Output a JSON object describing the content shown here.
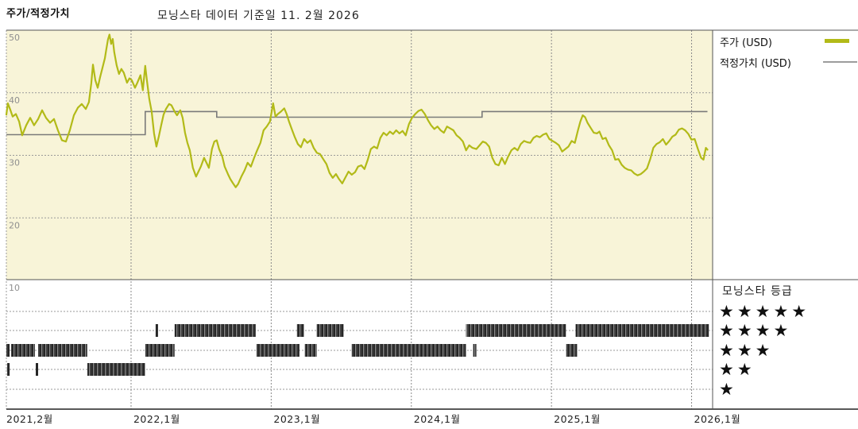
{
  "header": {
    "section_label": "주가/적정가치",
    "title": "모닝스타 데이터 기준일 11. 2월 2026"
  },
  "legend": {
    "price_label": "주가 (USD)",
    "fair_value_label": "적정가치 (USD)"
  },
  "rating_panel": {
    "title": "모닝스타 등급",
    "star_glyph": "★",
    "rows": [
      5,
      4,
      3,
      2,
      1
    ]
  },
  "colors": {
    "chart_bg": "#f8f4d8",
    "price_line": "#b2ba18",
    "fair_value_line": "#7a7a7a",
    "fair_value_legend_swatch": "#9c9c9c",
    "grid": "#9a9a9a",
    "border": "#555555",
    "axis_line": "#222222",
    "y_tick_text": "#8f8f8f",
    "x_tick_text": "#1f1f1f",
    "rating_band": "#262626",
    "stars": "#101010"
  },
  "chart_data": {
    "type": "line",
    "title": "모닝스타 데이터 기준일 11. 2월 2026",
    "x_range": [
      2021.11,
      2026.15
    ],
    "y_range": [
      10,
      50
    ],
    "grid": true,
    "legend_position": "top-right",
    "x_ticks": [
      {
        "x": 2021.11,
        "label": "2021,2월",
        "gridline": false
      },
      {
        "x": 2022.0,
        "label": "2022,1월",
        "gridline": true
      },
      {
        "x": 2023.0,
        "label": "2023,1월",
        "gridline": true
      },
      {
        "x": 2024.0,
        "label": "2024,1월",
        "gridline": true
      },
      {
        "x": 2025.0,
        "label": "2025,1월",
        "gridline": true
      },
      {
        "x": 2026.0,
        "label": "2026,1월",
        "gridline": true
      }
    ],
    "y_ticks": [
      50,
      40,
      30,
      20,
      10
    ],
    "series": [
      {
        "name": "주가 (USD)",
        "unit": "USD",
        "points": [
          [
            2021.11,
            36.5
          ],
          [
            2021.121,
            38.3
          ],
          [
            2021.138,
            37.3
          ],
          [
            2021.155,
            36.2
          ],
          [
            2021.178,
            36.6
          ],
          [
            2021.201,
            35.4
          ],
          [
            2021.223,
            33.2
          ],
          [
            2021.252,
            34.8
          ],
          [
            2021.28,
            36.0
          ],
          [
            2021.308,
            34.8
          ],
          [
            2021.337,
            35.8
          ],
          [
            2021.365,
            37.2
          ],
          [
            2021.393,
            36.0
          ],
          [
            2021.422,
            35.2
          ],
          [
            2021.45,
            35.8
          ],
          [
            2021.478,
            34.0
          ],
          [
            2021.507,
            32.4
          ],
          [
            2021.535,
            32.2
          ],
          [
            2021.563,
            34.0
          ],
          [
            2021.592,
            36.4
          ],
          [
            2021.62,
            37.6
          ],
          [
            2021.648,
            38.2
          ],
          [
            2021.677,
            37.4
          ],
          [
            2021.699,
            38.5
          ],
          [
            2021.716,
            41.5
          ],
          [
            2021.728,
            44.5
          ],
          [
            2021.745,
            42.0
          ],
          [
            2021.762,
            40.8
          ],
          [
            2021.779,
            42.5
          ],
          [
            2021.796,
            44.0
          ],
          [
            2021.813,
            45.5
          ],
          [
            2021.824,
            47.0
          ],
          [
            2021.835,
            48.5
          ],
          [
            2021.846,
            49.3
          ],
          [
            2021.858,
            47.8
          ],
          [
            2021.869,
            48.6
          ],
          [
            2021.88,
            46.5
          ],
          [
            2021.897,
            44.4
          ],
          [
            2021.914,
            43.0
          ],
          [
            2021.931,
            43.8
          ],
          [
            2021.948,
            43.2
          ],
          [
            2021.971,
            41.6
          ],
          [
            2021.988,
            42.3
          ],
          [
            2022.005,
            42.0
          ],
          [
            2022.028,
            40.8
          ],
          [
            2022.045,
            41.6
          ],
          [
            2022.067,
            42.8
          ],
          [
            2022.084,
            40.4
          ],
          [
            2022.101,
            44.3
          ],
          [
            2022.113,
            42.0
          ],
          [
            2022.13,
            39.0
          ],
          [
            2022.147,
            37.0
          ],
          [
            2022.164,
            33.5
          ],
          [
            2022.181,
            31.4
          ],
          [
            2022.198,
            33.0
          ],
          [
            2022.215,
            34.8
          ],
          [
            2022.232,
            36.5
          ],
          [
            2022.249,
            37.4
          ],
          [
            2022.271,
            38.2
          ],
          [
            2022.288,
            38.0
          ],
          [
            2022.311,
            37.0
          ],
          [
            2022.328,
            36.4
          ],
          [
            2022.351,
            37.2
          ],
          [
            2022.368,
            36.0
          ],
          [
            2022.385,
            33.6
          ],
          [
            2022.402,
            32.0
          ],
          [
            2022.419,
            30.8
          ],
          [
            2022.441,
            28.0
          ],
          [
            2022.464,
            26.6
          ],
          [
            2022.481,
            27.4
          ],
          [
            2022.498,
            28.2
          ],
          [
            2022.521,
            29.6
          ],
          [
            2022.538,
            28.8
          ],
          [
            2022.555,
            28.0
          ],
          [
            2022.577,
            31.0
          ],
          [
            2022.594,
            32.2
          ],
          [
            2022.611,
            32.4
          ],
          [
            2022.628,
            31.0
          ],
          [
            2022.651,
            29.8
          ],
          [
            2022.668,
            28.2
          ],
          [
            2022.691,
            27.0
          ],
          [
            2022.708,
            26.2
          ],
          [
            2022.725,
            25.6
          ],
          [
            2022.747,
            24.9
          ],
          [
            2022.764,
            25.4
          ],
          [
            2022.787,
            26.6
          ],
          [
            2022.81,
            27.6
          ],
          [
            2022.832,
            28.8
          ],
          [
            2022.855,
            28.2
          ],
          [
            2022.878,
            29.6
          ],
          [
            2022.9,
            30.8
          ],
          [
            2022.923,
            32.0
          ],
          [
            2022.946,
            34.0
          ],
          [
            2022.968,
            34.6
          ],
          [
            2022.991,
            35.4
          ],
          [
            2023.014,
            38.3
          ],
          [
            2023.031,
            36.2
          ],
          [
            2023.048,
            36.6
          ],
          [
            2023.07,
            37.0
          ],
          [
            2023.093,
            37.5
          ],
          [
            2023.11,
            36.6
          ],
          [
            2023.127,
            35.4
          ],
          [
            2023.15,
            34.0
          ],
          [
            2023.167,
            33.0
          ],
          [
            2023.19,
            31.8
          ],
          [
            2023.212,
            31.3
          ],
          [
            2023.235,
            32.6
          ],
          [
            2023.258,
            32.0
          ],
          [
            2023.28,
            32.4
          ],
          [
            2023.303,
            31.2
          ],
          [
            2023.326,
            30.4
          ],
          [
            2023.348,
            30.2
          ],
          [
            2023.371,
            29.4
          ],
          [
            2023.394,
            28.6
          ],
          [
            2023.416,
            27.2
          ],
          [
            2023.439,
            26.4
          ],
          [
            2023.462,
            27.0
          ],
          [
            2023.484,
            26.2
          ],
          [
            2023.507,
            25.5
          ],
          [
            2023.53,
            26.5
          ],
          [
            2023.552,
            27.4
          ],
          [
            2023.575,
            26.9
          ],
          [
            2023.598,
            27.3
          ],
          [
            2023.62,
            28.2
          ],
          [
            2023.643,
            28.4
          ],
          [
            2023.666,
            27.8
          ],
          [
            2023.688,
            29.2
          ],
          [
            2023.711,
            31.0
          ],
          [
            2023.734,
            31.4
          ],
          [
            2023.756,
            31.1
          ],
          [
            2023.779,
            32.8
          ],
          [
            2023.802,
            33.6
          ],
          [
            2023.824,
            33.2
          ],
          [
            2023.847,
            33.8
          ],
          [
            2023.87,
            33.4
          ],
          [
            2023.892,
            34.0
          ],
          [
            2023.915,
            33.5
          ],
          [
            2023.937,
            33.9
          ],
          [
            2023.96,
            33.2
          ],
          [
            2023.983,
            35.0
          ],
          [
            2024.005,
            36.0
          ],
          [
            2024.028,
            36.6
          ],
          [
            2024.051,
            37.1
          ],
          [
            2024.073,
            37.3
          ],
          [
            2024.096,
            36.6
          ],
          [
            2024.119,
            35.6
          ],
          [
            2024.141,
            34.8
          ],
          [
            2024.164,
            34.2
          ],
          [
            2024.187,
            34.6
          ],
          [
            2024.209,
            34.0
          ],
          [
            2024.232,
            33.6
          ],
          [
            2024.255,
            34.6
          ],
          [
            2024.277,
            34.3
          ],
          [
            2024.3,
            34.0
          ],
          [
            2024.323,
            33.2
          ],
          [
            2024.345,
            32.8
          ],
          [
            2024.368,
            32.2
          ],
          [
            2024.391,
            30.8
          ],
          [
            2024.413,
            31.6
          ],
          [
            2024.436,
            31.2
          ],
          [
            2024.464,
            31.0
          ],
          [
            2024.487,
            31.6
          ],
          [
            2024.51,
            32.2
          ],
          [
            2024.532,
            32.0
          ],
          [
            2024.555,
            31.4
          ],
          [
            2024.578,
            29.6
          ],
          [
            2024.6,
            28.6
          ],
          [
            2024.623,
            28.4
          ],
          [
            2024.646,
            29.6
          ],
          [
            2024.668,
            28.6
          ],
          [
            2024.691,
            29.8
          ],
          [
            2024.714,
            30.8
          ],
          [
            2024.736,
            31.2
          ],
          [
            2024.759,
            30.8
          ],
          [
            2024.781,
            31.8
          ],
          [
            2024.804,
            32.3
          ],
          [
            2024.827,
            32.1
          ],
          [
            2024.849,
            32.0
          ],
          [
            2024.872,
            32.8
          ],
          [
            2024.895,
            33.1
          ],
          [
            2024.917,
            32.9
          ],
          [
            2024.94,
            33.3
          ],
          [
            2024.963,
            33.5
          ],
          [
            2024.985,
            32.6
          ],
          [
            2025.008,
            32.3
          ],
          [
            2025.031,
            32.0
          ],
          [
            2025.053,
            31.6
          ],
          [
            2025.076,
            30.6
          ],
          [
            2025.099,
            31.0
          ],
          [
            2025.121,
            31.4
          ],
          [
            2025.144,
            32.3
          ],
          [
            2025.167,
            32.0
          ],
          [
            2025.189,
            34.0
          ],
          [
            2025.206,
            35.4
          ],
          [
            2025.223,
            36.4
          ],
          [
            2025.24,
            36.1
          ],
          [
            2025.257,
            35.2
          ],
          [
            2025.28,
            34.4
          ],
          [
            2025.302,
            33.6
          ],
          [
            2025.325,
            33.5
          ],
          [
            2025.342,
            33.8
          ],
          [
            2025.365,
            32.6
          ],
          [
            2025.387,
            32.8
          ],
          [
            2025.41,
            31.6
          ],
          [
            2025.433,
            30.8
          ],
          [
            2025.455,
            29.3
          ],
          [
            2025.478,
            29.4
          ],
          [
            2025.501,
            28.5
          ],
          [
            2025.523,
            28.0
          ],
          [
            2025.546,
            27.7
          ],
          [
            2025.569,
            27.6
          ],
          [
            2025.591,
            27.1
          ],
          [
            2025.614,
            26.8
          ],
          [
            2025.637,
            27.0
          ],
          [
            2025.659,
            27.4
          ],
          [
            2025.682,
            27.9
          ],
          [
            2025.705,
            29.4
          ],
          [
            2025.727,
            31.2
          ],
          [
            2025.75,
            31.8
          ],
          [
            2025.773,
            32.1
          ],
          [
            2025.795,
            32.6
          ],
          [
            2025.818,
            31.7
          ],
          [
            2025.841,
            32.3
          ],
          [
            2025.863,
            33.0
          ],
          [
            2025.886,
            33.3
          ],
          [
            2025.909,
            34.1
          ],
          [
            2025.931,
            34.3
          ],
          [
            2025.954,
            34.0
          ],
          [
            2025.977,
            33.4
          ],
          [
            2025.999,
            32.5
          ],
          [
            2026.022,
            32.6
          ],
          [
            2026.045,
            31.0
          ],
          [
            2026.068,
            29.6
          ],
          [
            2026.085,
            29.3
          ],
          [
            2026.102,
            31.2
          ],
          [
            2026.113,
            30.9
          ]
        ]
      },
      {
        "name": "적정가치 (USD)",
        "unit": "USD",
        "style": "step",
        "points": [
          [
            2021.11,
            33.3
          ],
          [
            2022.101,
            33.3
          ],
          [
            2022.101,
            37.0
          ],
          [
            2022.611,
            37.0
          ],
          [
            2022.611,
            36.1
          ],
          [
            2024.505,
            36.1
          ],
          [
            2024.505,
            37.0
          ],
          [
            2026.113,
            37.0
          ]
        ]
      }
    ],
    "rating_timeline": {
      "description": "모닝스타 등급 (stars) over time, shown as dense tick bands",
      "levels": [
        {
          "stars": 4,
          "segments": [
            [
              2022.175,
              2022.192
            ],
            [
              2022.311,
              2022.889
            ],
            [
              2023.184,
              2023.235
            ],
            [
              2023.325,
              2023.518
            ],
            [
              2024.39,
              2025.104
            ],
            [
              2025.172,
              2026.124
            ]
          ]
        },
        {
          "stars": 3,
          "segments": [
            [
              2021.11,
              2021.133
            ],
            [
              2021.144,
              2021.314
            ],
            [
              2021.337,
              2021.688
            ],
            [
              2022.101,
              2022.311
            ],
            [
              2022.895,
              2023.201
            ],
            [
              2023.24,
              2023.325
            ],
            [
              2023.574,
              2024.39
            ],
            [
              2024.441,
              2024.464
            ],
            [
              2025.104,
              2025.183
            ]
          ]
        },
        {
          "stars": 2,
          "segments": [
            [
              2021.116,
              2021.133
            ],
            [
              2021.32,
              2021.337
            ],
            [
              2021.688,
              2022.101
            ]
          ]
        }
      ]
    }
  }
}
